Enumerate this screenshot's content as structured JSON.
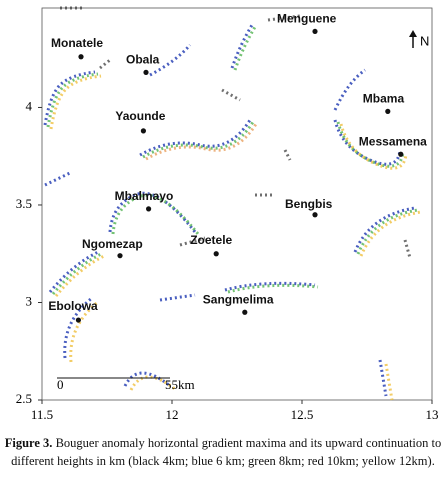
{
  "map": {
    "xlim": [
      11.5,
      13.0
    ],
    "ylim": [
      2.5,
      4.51
    ],
    "xticks": [
      {
        "value": 11.5,
        "label": "11.5"
      },
      {
        "value": 12,
        "label": "12"
      },
      {
        "value": 12.5,
        "label": "12.5"
      },
      {
        "value": 13,
        "label": "13"
      }
    ],
    "yticks": [
      {
        "value": 2.5,
        "label": "2.5"
      },
      {
        "value": 3,
        "label": "3"
      },
      {
        "value": 3.5,
        "label": "3.5"
      },
      {
        "value": 4,
        "label": "4"
      }
    ],
    "places": [
      {
        "name": "Menguene",
        "x": 12.55,
        "y": 4.39
      },
      {
        "name": "Monatele",
        "x": 11.65,
        "y": 4.26
      },
      {
        "name": "Obala",
        "x": 11.9,
        "y": 4.18
      },
      {
        "name": "Yaounde",
        "x": 11.89,
        "y": 3.88
      },
      {
        "name": "Mbama",
        "x": 12.83,
        "y": 3.98
      },
      {
        "name": "Messamena",
        "x": 12.88,
        "y": 3.76
      },
      {
        "name": "Mbalmayo",
        "x": 11.91,
        "y": 3.48
      },
      {
        "name": "Bengbis",
        "x": 12.55,
        "y": 3.45
      },
      {
        "name": "Ngomezap",
        "x": 11.8,
        "y": 3.24
      },
      {
        "name": "Zoetele",
        "x": 12.17,
        "y": 3.25
      },
      {
        "name": "Sangmelima",
        "x": 12.28,
        "y": 2.95
      },
      {
        "name": "Ebolowa",
        "x": 11.64,
        "y": 2.91
      }
    ],
    "scale_bar": {
      "start": "0",
      "end": "55km"
    },
    "north": "N"
  },
  "caption": {
    "label": "Figure 3.",
    "text": "Bouguer anomaly horizontal gradient maxima and its upward continuation to different heights in km (black 4km; blue 6 km; green 8km; red 10km; yellow 12km)."
  }
}
